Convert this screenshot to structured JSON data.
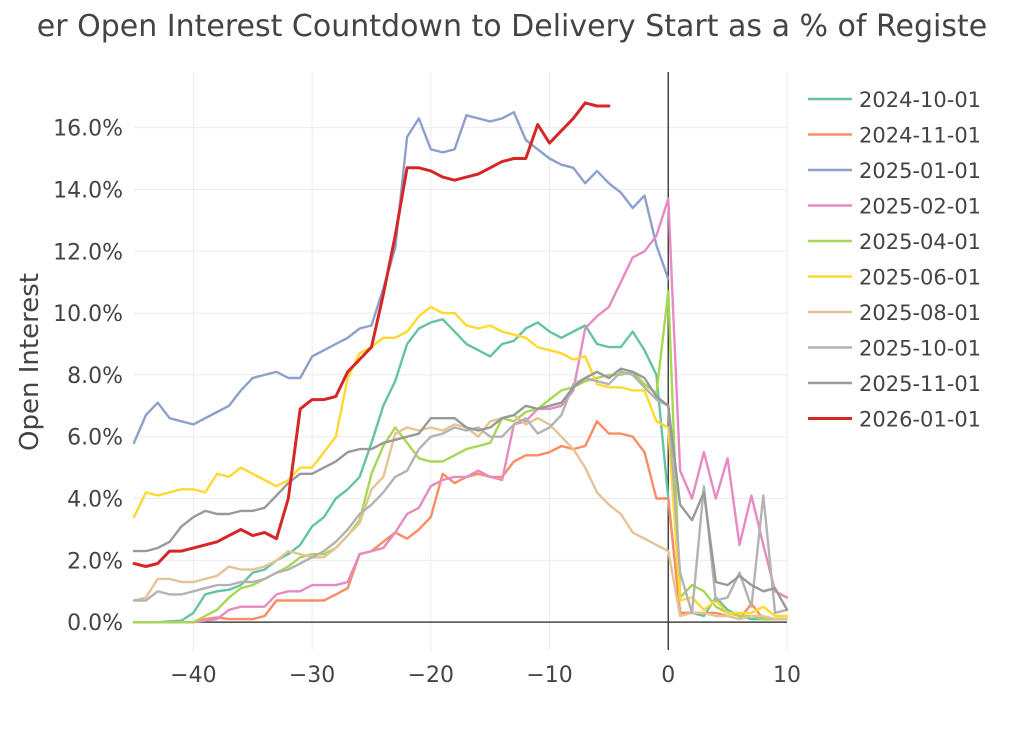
{
  "chart_data": {
    "type": "line",
    "title": "er Open Interest Countdown to Delivery Start as a % of Registe",
    "xlabel": "",
    "ylabel": "Open Interest",
    "xlim": [
      -45,
      10
    ],
    "ylim": [
      -0.9,
      17.8
    ],
    "xticks": [
      -40,
      -30,
      -20,
      -10,
      0,
      10
    ],
    "xtick_labels": [
      "−40",
      "−30",
      "−20",
      "−10",
      "0",
      "10"
    ],
    "yticks": [
      0,
      2,
      4,
      6,
      8,
      10,
      12,
      14,
      16
    ],
    "ytick_labels": [
      "0.0%",
      "2.0%",
      "4.0%",
      "6.0%",
      "8.0%",
      "10.0%",
      "12.0%",
      "14.0%",
      "16.0%"
    ],
    "grid": true,
    "vline_x": 0,
    "legend_position": "right",
    "series": [
      {
        "name": "2024-10-01",
        "color": "#66c2a5",
        "x": [
          -45,
          -43,
          -41,
          -40,
          -39,
          -38,
          -37,
          -36,
          -35,
          -34,
          -33,
          -32,
          -31,
          -30,
          -29,
          -28,
          -27,
          -26,
          -25,
          -24,
          -23,
          -22,
          -21,
          -20,
          -19,
          -18,
          -17,
          -16,
          -15,
          -14,
          -13,
          -12,
          -11,
          -10,
          -9,
          -8,
          -7,
          -6,
          -5,
          -4,
          -3,
          -2,
          -1,
          0,
          1,
          2,
          3,
          4,
          5,
          6,
          7,
          8,
          9,
          10
        ],
        "values": [
          0,
          0,
          0.05,
          0.3,
          0.9,
          1.0,
          1.05,
          1.2,
          1.6,
          1.7,
          2.0,
          2.2,
          2.5,
          3.1,
          3.4,
          4.0,
          4.3,
          4.7,
          5.8,
          7.0,
          7.8,
          9.0,
          9.5,
          9.7,
          9.8,
          9.4,
          9.0,
          8.8,
          8.6,
          9.0,
          9.1,
          9.5,
          9.7,
          9.4,
          9.2,
          9.4,
          9.6,
          9.0,
          8.9,
          8.9,
          9.4,
          8.8,
          8.0,
          4.0,
          0.3,
          0.3,
          0.2,
          0.8,
          0.4,
          0.2,
          0.1,
          0.1,
          0.1,
          0.1
        ]
      },
      {
        "name": "2024-11-01",
        "color": "#fc8d62",
        "x": [
          -45,
          -40,
          -39,
          -38,
          -37,
          -36,
          -35,
          -34,
          -33,
          -32,
          -31,
          -30,
          -29,
          -28,
          -27,
          -26,
          -25,
          -24,
          -23,
          -22,
          -21,
          -20,
          -19,
          -18,
          -17,
          -16,
          -15,
          -14,
          -13,
          -12,
          -11,
          -10,
          -9,
          -8,
          -7,
          -6,
          -5,
          -4,
          -3,
          -2,
          -1,
          0,
          1,
          2,
          3,
          4,
          5,
          6,
          7,
          8,
          9,
          10
        ],
        "values": [
          0,
          0,
          0.1,
          0.15,
          0.1,
          0.1,
          0.1,
          0.2,
          0.7,
          0.7,
          0.7,
          0.7,
          0.7,
          0.9,
          1.1,
          2.2,
          2.3,
          2.6,
          2.9,
          2.7,
          3.0,
          3.4,
          4.8,
          4.5,
          4.7,
          4.8,
          4.7,
          4.7,
          5.2,
          5.4,
          5.4,
          5.5,
          5.7,
          5.6,
          5.7,
          6.5,
          6.1,
          6.1,
          6.0,
          5.5,
          4.0,
          4.0,
          0.3,
          0.3,
          0.3,
          0.3,
          0.2,
          0.1,
          0.6,
          0.1,
          0.1,
          0.1
        ]
      },
      {
        "name": "2025-01-01",
        "color": "#8da0cb",
        "x": [
          -45,
          -44,
          -43,
          -42,
          -41,
          -40,
          -39,
          -38,
          -37,
          -36,
          -35,
          -34,
          -33,
          -32,
          -31,
          -30,
          -29,
          -28,
          -27,
          -26,
          -25,
          -24,
          -23,
          -22,
          -21,
          -20,
          -19,
          -18,
          -17,
          -16,
          -15,
          -14,
          -13,
          -12,
          -11,
          -10,
          -9,
          -8,
          -7,
          -6,
          -5,
          -4,
          -3,
          -2,
          -1,
          0
        ],
        "values": [
          5.8,
          6.7,
          7.1,
          6.6,
          6.5,
          6.4,
          6.6,
          6.8,
          7.0,
          7.5,
          7.9,
          8.0,
          8.1,
          7.9,
          7.9,
          8.6,
          8.8,
          9.0,
          9.2,
          9.5,
          9.6,
          10.8,
          12.1,
          15.7,
          16.3,
          15.3,
          15.2,
          15.3,
          16.4,
          16.3,
          16.2,
          16.3,
          16.5,
          15.6,
          15.3,
          15.0,
          14.8,
          14.7,
          14.2,
          14.6,
          14.2,
          13.9,
          13.4,
          13.8,
          12.2,
          11.1
        ]
      },
      {
        "name": "2025-02-01",
        "color": "#e78ac3",
        "x": [
          -45,
          -40,
          -39,
          -38,
          -37,
          -36,
          -35,
          -34,
          -33,
          -32,
          -31,
          -30,
          -29,
          -28,
          -27,
          -26,
          -25,
          -24,
          -23,
          -22,
          -21,
          -20,
          -19,
          -18,
          -17,
          -16,
          -15,
          -14,
          -13,
          -12,
          -11,
          -10,
          -9,
          -8,
          -7,
          -6,
          -5,
          -4,
          -3,
          -2,
          -1,
          0,
          1,
          2,
          3,
          4,
          5,
          6,
          7,
          8,
          9,
          10
        ],
        "values": [
          0,
          0,
          0.05,
          0.1,
          0.4,
          0.5,
          0.5,
          0.5,
          0.9,
          1.0,
          1.0,
          1.2,
          1.2,
          1.2,
          1.3,
          2.2,
          2.3,
          2.4,
          2.9,
          3.5,
          3.7,
          4.4,
          4.6,
          4.7,
          4.7,
          4.9,
          4.7,
          4.6,
          6.4,
          6.5,
          6.9,
          6.9,
          7.0,
          7.5,
          9.5,
          9.9,
          10.2,
          11.0,
          11.8,
          12.0,
          12.5,
          13.7,
          4.9,
          4.0,
          5.5,
          4.0,
          5.3,
          2.5,
          4.1,
          2.5,
          1.0,
          0.8
        ]
      },
      {
        "name": "2025-04-01",
        "color": "#a6d854",
        "x": [
          -45,
          -40,
          -39,
          -38,
          -37,
          -36,
          -35,
          -34,
          -33,
          -32,
          -31,
          -30,
          -29,
          -28,
          -27,
          -26,
          -25,
          -24,
          -23,
          -22,
          -21,
          -20,
          -19,
          -18,
          -17,
          -16,
          -15,
          -14,
          -13,
          -12,
          -11,
          -10,
          -9,
          -8,
          -7,
          -6,
          -5,
          -4,
          -3,
          -2,
          -1,
          0,
          1,
          2,
          3,
          4,
          5,
          6,
          7,
          8,
          9,
          10
        ],
        "values": [
          0,
          0,
          0.2,
          0.4,
          0.8,
          1.1,
          1.2,
          1.4,
          1.6,
          1.8,
          2.1,
          2.2,
          2.2,
          2.4,
          2.8,
          3.3,
          4.8,
          5.7,
          6.3,
          5.8,
          5.3,
          5.2,
          5.2,
          5.4,
          5.6,
          5.7,
          5.8,
          6.6,
          6.5,
          6.8,
          6.9,
          7.2,
          7.5,
          7.6,
          7.8,
          7.9,
          8.0,
          8.0,
          8.1,
          7.7,
          7.4,
          10.7,
          0.8,
          1.2,
          1.0,
          0.5,
          0.3,
          0.2,
          0.2,
          0.1,
          0.1,
          0.1
        ]
      },
      {
        "name": "2025-06-01",
        "color": "#ffd92f",
        "x": [
          -45,
          -44,
          -43,
          -42,
          -41,
          -40,
          -39,
          -38,
          -37,
          -36,
          -35,
          -34,
          -33,
          -32,
          -31,
          -30,
          -29,
          -28,
          -27,
          -26,
          -25,
          -24,
          -23,
          -22,
          -21,
          -20,
          -19,
          -18,
          -17,
          -16,
          -15,
          -14,
          -13,
          -12,
          -11,
          -10,
          -9,
          -8,
          -7,
          -6,
          -5,
          -4,
          -3,
          -2,
          -1,
          0,
          1,
          2,
          3,
          4,
          5,
          6,
          7,
          8,
          9,
          10
        ],
        "values": [
          3.4,
          4.2,
          4.1,
          4.2,
          4.3,
          4.3,
          4.2,
          4.8,
          4.7,
          5.0,
          4.8,
          4.6,
          4.4,
          4.6,
          5.0,
          5.0,
          5.5,
          6.0,
          7.9,
          8.7,
          8.9,
          9.2,
          9.2,
          9.4,
          9.9,
          10.2,
          10.0,
          10.0,
          9.6,
          9.5,
          9.6,
          9.4,
          9.3,
          9.2,
          8.9,
          8.8,
          8.7,
          8.5,
          8.6,
          7.7,
          7.6,
          7.6,
          7.5,
          7.5,
          6.5,
          6.3,
          0.7,
          0.8,
          0.4,
          0.7,
          0.3,
          0.3,
          0.3,
          0.5,
          0.2,
          0.2
        ]
      },
      {
        "name": "2025-08-01",
        "color": "#e5c494",
        "x": [
          -45,
          -44,
          -43,
          -42,
          -41,
          -40,
          -39,
          -38,
          -37,
          -36,
          -35,
          -34,
          -33,
          -32,
          -31,
          -30,
          -29,
          -28,
          -27,
          -26,
          -25,
          -24,
          -23,
          -22,
          -21,
          -20,
          -19,
          -18,
          -17,
          -16,
          -15,
          -14,
          -13,
          -12,
          -11,
          -10,
          -9,
          -8,
          -7,
          -6,
          -5,
          -4,
          -3,
          -2,
          -1,
          0,
          1,
          2,
          3,
          4,
          5,
          6,
          7,
          8,
          9,
          10
        ],
        "values": [
          0.7,
          0.8,
          1.4,
          1.4,
          1.3,
          1.3,
          1.4,
          1.5,
          1.8,
          1.7,
          1.7,
          1.8,
          2.0,
          2.3,
          2.2,
          2.1,
          2.1,
          2.4,
          2.8,
          3.2,
          4.3,
          4.7,
          6.1,
          6.3,
          6.2,
          6.3,
          6.2,
          6.4,
          6.3,
          6.0,
          6.5,
          6.6,
          6.7,
          6.4,
          6.6,
          6.4,
          6.0,
          5.6,
          5.0,
          4.2,
          3.8,
          3.5,
          2.9,
          2.7,
          2.5,
          2.3,
          0.2,
          0.3,
          0.3,
          0.2,
          0.2,
          0.1,
          0.2,
          0.2,
          0.1,
          0.1
        ]
      },
      {
        "name": "2025-10-01",
        "color": "#b3b3b3",
        "x": [
          -45,
          -44,
          -43,
          -42,
          -41,
          -40,
          -39,
          -38,
          -37,
          -36,
          -35,
          -34,
          -33,
          -32,
          -31,
          -30,
          -29,
          -28,
          -27,
          -26,
          -25,
          -24,
          -23,
          -22,
          -21,
          -20,
          -19,
          -18,
          -17,
          -16,
          -15,
          -14,
          -13,
          -12,
          -11,
          -10,
          -9,
          -8,
          -7,
          -6,
          -5,
          -4,
          -3,
          -2,
          -1,
          0,
          1,
          2,
          3,
          4,
          5,
          6,
          7,
          8,
          9,
          10
        ],
        "values": [
          0.7,
          0.7,
          1.0,
          0.9,
          0.9,
          1.0,
          1.1,
          1.2,
          1.2,
          1.3,
          1.3,
          1.4,
          1.6,
          1.7,
          1.9,
          2.1,
          2.3,
          2.6,
          3.0,
          3.5,
          3.8,
          4.2,
          4.7,
          4.9,
          5.6,
          6.0,
          6.1,
          6.3,
          6.2,
          6.3,
          6.0,
          6.0,
          6.4,
          6.6,
          6.1,
          6.3,
          6.7,
          7.7,
          7.9,
          7.8,
          7.7,
          8.1,
          8.0,
          7.6,
          7.2,
          7.0,
          1.6,
          0.3,
          4.4,
          0.7,
          0.8,
          1.6,
          0.5,
          4.1,
          0.3,
          0.4
        ]
      },
      {
        "name": "2025-11-01",
        "color": "#999999",
        "x": [
          -45,
          -44,
          -43,
          -42,
          -41,
          -40,
          -39,
          -38,
          -37,
          -36,
          -35,
          -34,
          -33,
          -32,
          -31,
          -30,
          -29,
          -28,
          -27,
          -26,
          -25,
          -24,
          -23,
          -22,
          -21,
          -20,
          -19,
          -18,
          -17,
          -16,
          -15,
          -14,
          -13,
          -12,
          -11,
          -10,
          -9,
          -8,
          -7,
          -6,
          -5,
          -4,
          -3,
          -2,
          -1,
          0,
          1,
          2,
          3,
          4,
          5,
          6,
          7,
          8,
          9,
          10
        ],
        "values": [
          2.3,
          2.3,
          2.4,
          2.6,
          3.1,
          3.4,
          3.6,
          3.5,
          3.5,
          3.6,
          3.6,
          3.7,
          4.1,
          4.5,
          4.8,
          4.8,
          5.0,
          5.2,
          5.5,
          5.6,
          5.6,
          5.8,
          5.9,
          6.0,
          6.1,
          6.6,
          6.6,
          6.6,
          6.3,
          6.2,
          6.3,
          6.6,
          6.7,
          7.0,
          6.9,
          7.0,
          7.1,
          7.6,
          7.9,
          8.1,
          7.9,
          8.2,
          8.1,
          7.9,
          7.3,
          7.0,
          3.8,
          3.3,
          4.2,
          1.3,
          1.2,
          1.5,
          1.2,
          1.0,
          1.1,
          0.4
        ]
      },
      {
        "name": "2026-01-01",
        "color": "#d62728",
        "x": [
          -45,
          -44,
          -43,
          -42,
          -41,
          -40,
          -39,
          -38,
          -37,
          -36,
          -35,
          -34,
          -33,
          -32,
          -31,
          -30,
          -29,
          -28,
          -27,
          -26,
          -25,
          -24,
          -23,
          -22,
          -21,
          -20,
          -19,
          -18,
          -17,
          -16,
          -15,
          -14,
          -13,
          -12,
          -11,
          -10,
          -9,
          -8,
          -7,
          -6,
          -5
        ],
        "values": [
          1.9,
          1.8,
          1.9,
          2.3,
          2.3,
          2.4,
          2.5,
          2.6,
          2.8,
          3.0,
          2.8,
          2.9,
          2.7,
          4.0,
          6.9,
          7.2,
          7.2,
          7.3,
          8.1,
          8.5,
          8.9,
          10.6,
          12.5,
          14.7,
          14.7,
          14.6,
          14.4,
          14.3,
          14.4,
          14.5,
          14.7,
          14.9,
          15.0,
          15.0,
          16.1,
          15.5,
          15.9,
          16.3,
          16.8,
          16.7,
          16.7
        ]
      }
    ]
  }
}
